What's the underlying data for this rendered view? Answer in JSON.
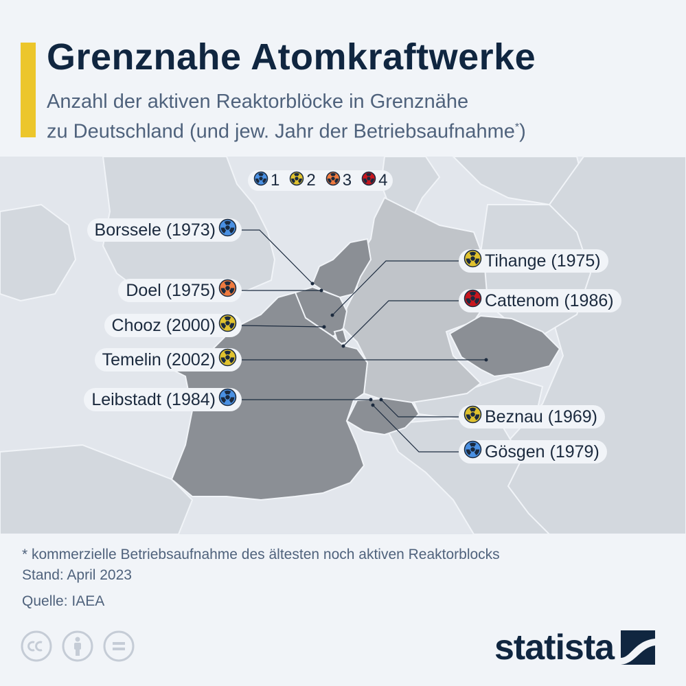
{
  "header": {
    "title": "Grenznahe Atomkraftwerke",
    "subtitle_line1": "Anzahl der aktiven Reaktorblöcke in Grenznähe",
    "subtitle_line2": "zu Deutschland (und jew. Jahr der Betriebsaufnahme",
    "subtitle_sup": "*",
    "subtitle_end": ")"
  },
  "legend": [
    {
      "label": "1",
      "color": "#4a90e2"
    },
    {
      "label": "2",
      "color": "#e0c22e"
    },
    {
      "label": "3",
      "color": "#ee7a3f"
    },
    {
      "label": "4",
      "color": "#c8161e"
    }
  ],
  "plants": [
    {
      "name": "Borssele (1973)",
      "reactors": 1,
      "color": "#4a90e2"
    },
    {
      "name": "Doel (1975)",
      "reactors": 3,
      "color": "#ee7a3f"
    },
    {
      "name": "Chooz (2000)",
      "reactors": 2,
      "color": "#e0c22e"
    },
    {
      "name": "Temelin (2002)",
      "reactors": 2,
      "color": "#e0c22e"
    },
    {
      "name": "Leibstadt (1984)",
      "reactors": 1,
      "color": "#4a90e2"
    },
    {
      "name": "Tihange (1975)",
      "reactors": 2,
      "color": "#e0c22e"
    },
    {
      "name": "Cattenom (1986)",
      "reactors": 4,
      "color": "#c8161e"
    },
    {
      "name": "Beznau (1969)",
      "reactors": 2,
      "color": "#e0c22e"
    },
    {
      "name": "Gösgen (1979)",
      "reactors": 1,
      "color": "#4a90e2"
    }
  ],
  "footer": {
    "footnote": "* kommerzielle Betriebsaufnahme des ältesten noch aktiven Reaktorblocks",
    "stand": "Stand: April 2023",
    "source": "Quelle: IAEA",
    "brand": "statista"
  },
  "colors": {
    "accent": "#ecc62b",
    "title": "#102640",
    "map_background": "#e2e6ec",
    "land_other": "#d3d8de",
    "germany": "#c0c4c9",
    "neighbours": "#8b8f95"
  },
  "icons": {
    "marker": "radiation-icon",
    "license": [
      "cc-icon",
      "by-icon",
      "nd-icon"
    ],
    "brand": "statista-logo-icon"
  }
}
